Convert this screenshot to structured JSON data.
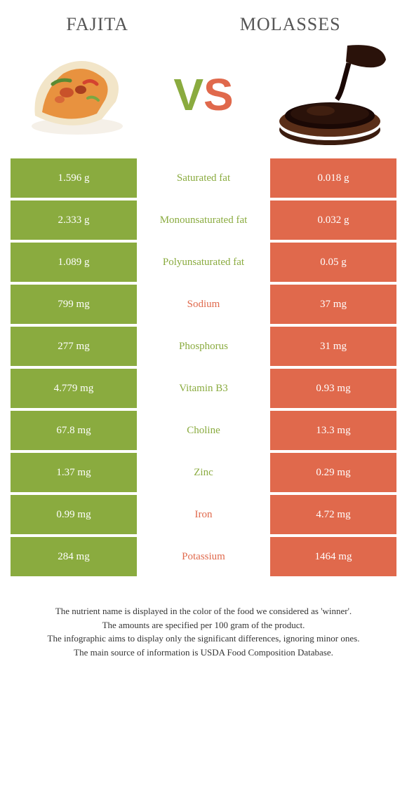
{
  "header": {
    "left_title": "FAJITA",
    "right_title": "MOLASSES",
    "vs_v": "V",
    "vs_s": "S"
  },
  "colors": {
    "green": "#8aab3f",
    "orange": "#e0694c",
    "text": "#333333",
    "bg": "#ffffff"
  },
  "rows": [
    {
      "left": "1.596 g",
      "label": "Saturated fat",
      "right": "0.018 g",
      "winner": "green"
    },
    {
      "left": "2.333 g",
      "label": "Monounsaturated fat",
      "right": "0.032 g",
      "winner": "green"
    },
    {
      "left": "1.089 g",
      "label": "Polyunsaturated fat",
      "right": "0.05 g",
      "winner": "green"
    },
    {
      "left": "799 mg",
      "label": "Sodium",
      "right": "37 mg",
      "winner": "orange"
    },
    {
      "left": "277 mg",
      "label": "Phosphorus",
      "right": "31 mg",
      "winner": "green"
    },
    {
      "left": "4.779 mg",
      "label": "Vitamin B3",
      "right": "0.93 mg",
      "winner": "green"
    },
    {
      "left": "67.8 mg",
      "label": "Choline",
      "right": "13.3 mg",
      "winner": "green"
    },
    {
      "left": "1.37 mg",
      "label": "Zinc",
      "right": "0.29 mg",
      "winner": "green"
    },
    {
      "left": "0.99 mg",
      "label": "Iron",
      "right": "4.72 mg",
      "winner": "orange"
    },
    {
      "left": "284 mg",
      "label": "Potassium",
      "right": "1464 mg",
      "winner": "orange"
    }
  ],
  "footer": {
    "line1": "The nutrient name is displayed in the color of the food we considered as 'winner'.",
    "line2": "The amounts are specified per 100 gram of the product.",
    "line3": "The infographic aims to display only the significant differences, ignoring minor ones.",
    "line4": "The main source of information is USDA Food Composition Database."
  }
}
